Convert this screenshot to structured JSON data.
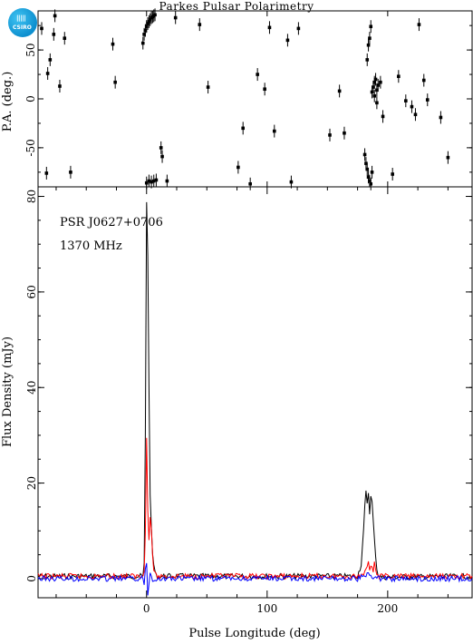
{
  "header": {
    "title": "Parkes Pulsar Polarimetry",
    "logo_text": "CSIRO",
    "logo_bars": "|||||"
  },
  "colors": {
    "total": "#000000",
    "linear": "#ff0000",
    "circular": "#0000ff",
    "logo": "#1aa3e0"
  },
  "chart_data": [
    {
      "type": "scatter",
      "ylabel": "P.A. (deg.)",
      "xlim": [
        -90,
        270
      ],
      "ylim": [
        -90,
        90
      ],
      "yticks": [
        -50,
        0,
        50
      ],
      "points": [
        [
          -87,
          72
        ],
        [
          -83,
          -76
        ],
        [
          -82,
          26
        ],
        [
          -80,
          40
        ],
        [
          -77,
          66
        ],
        [
          -76,
          85
        ],
        [
          -72,
          13
        ],
        [
          -68,
          62
        ],
        [
          -63,
          -75
        ],
        [
          -28,
          56
        ],
        [
          -26,
          17
        ],
        [
          -3,
          57
        ],
        [
          -2,
          66
        ],
        [
          -1,
          70
        ],
        [
          0,
          74
        ],
        [
          1,
          77
        ],
        [
          2,
          79
        ],
        [
          3,
          81
        ],
        [
          4,
          83
        ],
        [
          5,
          84
        ],
        [
          6,
          85
        ],
        [
          7,
          86
        ],
        [
          0,
          -86
        ],
        [
          2,
          -84
        ],
        [
          4,
          -85
        ],
        [
          6,
          -84
        ],
        [
          8,
          -83
        ],
        [
          12,
          -50
        ],
        [
          13,
          -59
        ],
        [
          17,
          -84
        ],
        [
          24,
          83
        ],
        [
          44,
          76
        ],
        [
          51,
          12
        ],
        [
          76,
          -70
        ],
        [
          80,
          -30
        ],
        [
          86,
          -87
        ],
        [
          92,
          25
        ],
        [
          98,
          10
        ],
        [
          102,
          73
        ],
        [
          106,
          -33
        ],
        [
          117,
          60
        ],
        [
          120,
          -85
        ],
        [
          126,
          72
        ],
        [
          152,
          -37
        ],
        [
          160,
          8
        ],
        [
          164,
          -35
        ],
        [
          181,
          -57
        ],
        [
          182,
          -66
        ],
        [
          183,
          -72
        ],
        [
          183,
          40
        ],
        [
          184,
          -80
        ],
        [
          184,
          55
        ],
        [
          185,
          62
        ],
        [
          185,
          -84
        ],
        [
          186,
          74
        ],
        [
          186,
          -87
        ],
        [
          187,
          7
        ],
        [
          187,
          -75
        ],
        [
          188,
          12
        ],
        [
          189,
          17
        ],
        [
          189,
          3
        ],
        [
          190,
          20
        ],
        [
          191,
          -4
        ],
        [
          191,
          9
        ],
        [
          192,
          14
        ],
        [
          194,
          17
        ],
        [
          196,
          -18
        ],
        [
          204,
          -77
        ],
        [
          209,
          23
        ],
        [
          215,
          -2
        ],
        [
          220,
          -8
        ],
        [
          223,
          -16
        ],
        [
          226,
          76
        ],
        [
          230,
          19
        ],
        [
          233,
          -1
        ],
        [
          244,
          -19
        ],
        [
          250,
          -60
        ]
      ]
    },
    {
      "type": "line",
      "xlabel": "Pulse Longitude (deg)",
      "ylabel": "Flux Density (mJy)",
      "annotations": [
        "PSR J0627+0706",
        "1370 MHz"
      ],
      "xlim": [
        -90,
        270
      ],
      "ylim": [
        -4,
        82
      ],
      "xticks": [
        0,
        100,
        200
      ],
      "yticks": [
        0,
        20,
        40,
        60,
        80
      ],
      "series": [
        {
          "key": "total",
          "x": [
            -90,
            -3,
            -2,
            -1,
            0,
            1,
            2,
            3,
            4,
            5,
            6,
            7,
            8,
            175,
            178,
            180,
            181,
            182,
            183,
            184,
            185,
            186,
            187,
            188,
            189,
            190,
            191,
            192,
            193,
            195,
            270
          ],
          "y": [
            0.5,
            0.5,
            3,
            30,
            79,
            68,
            40,
            18,
            10,
            5,
            3,
            1.5,
            0.5,
            0.5,
            3,
            10,
            15,
            18,
            16,
            18,
            14,
            17,
            16,
            12,
            8,
            5,
            2,
            1,
            0.5,
            0.3,
            0.5
          ]
        },
        {
          "key": "linear",
          "x": [
            -90,
            -3,
            -2,
            -1,
            0,
            1,
            2,
            3,
            4,
            5,
            6,
            7,
            8,
            175,
            180,
            182,
            183,
            184,
            185,
            186,
            187,
            188,
            189,
            190,
            191,
            192,
            193,
            195,
            270
          ],
          "y": [
            0.5,
            0.5,
            2,
            10,
            30,
            14,
            8,
            13,
            10,
            5,
            2,
            1,
            0.5,
            0.5,
            1,
            2,
            3,
            4,
            2,
            3,
            2,
            1.5,
            4,
            2,
            1,
            0.8,
            0.5,
            0.5,
            0.5
          ]
        },
        {
          "key": "circular",
          "x": [
            -90,
            -3,
            -2,
            -1,
            0,
            1,
            2,
            3,
            4,
            5,
            6,
            8,
            175,
            180,
            183,
            186,
            190,
            195,
            270
          ],
          "y": [
            0,
            0,
            -1,
            2,
            3,
            -3,
            -1,
            1,
            0.5,
            0,
            0,
            0,
            0,
            0.5,
            0.8,
            0.6,
            0.3,
            0,
            0
          ]
        }
      ]
    }
  ]
}
